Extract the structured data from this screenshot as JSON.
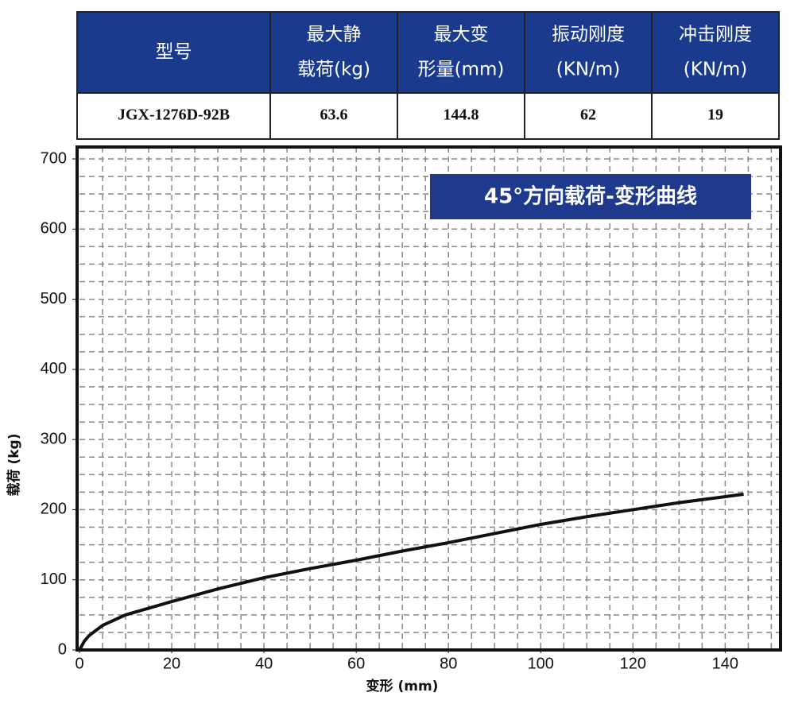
{
  "table": {
    "header": [
      [
        "型号"
      ],
      [
        "最大静",
        "载荷(kg)"
      ],
      [
        "最大变",
        "形量(mm)"
      ],
      [
        "振动刚度",
        "(KN/m)"
      ],
      [
        "冲击刚度",
        "(KN/m)"
      ]
    ],
    "rows": [
      [
        "JGX-1276D-92B",
        "63.6",
        "144.8",
        "62",
        "19"
      ]
    ]
  },
  "chart_data": {
    "type": "line",
    "title": "45°方向载荷-变形曲线",
    "x_label": "变形 (mm)",
    "y_label": "载荷 (kg)",
    "x": [
      0,
      1,
      2,
      5,
      10,
      20,
      30,
      40,
      50,
      60,
      70,
      80,
      90,
      100,
      110,
      120,
      130,
      144
    ],
    "values": [
      0,
      12,
      20,
      35,
      50,
      69,
      87,
      103,
      116,
      128,
      141,
      153,
      166,
      179,
      190,
      200,
      210,
      222
    ],
    "color": "#111111",
    "xlim": [
      0,
      152
    ],
    "ylim": [
      0,
      717
    ],
    "xticks": [
      0,
      20,
      40,
      60,
      80,
      100,
      120,
      140
    ],
    "yticks": [
      0,
      100,
      200,
      300,
      400,
      500,
      600,
      700
    ],
    "grid": true,
    "grid_step_x": 5,
    "grid_step_y": 25
  }
}
